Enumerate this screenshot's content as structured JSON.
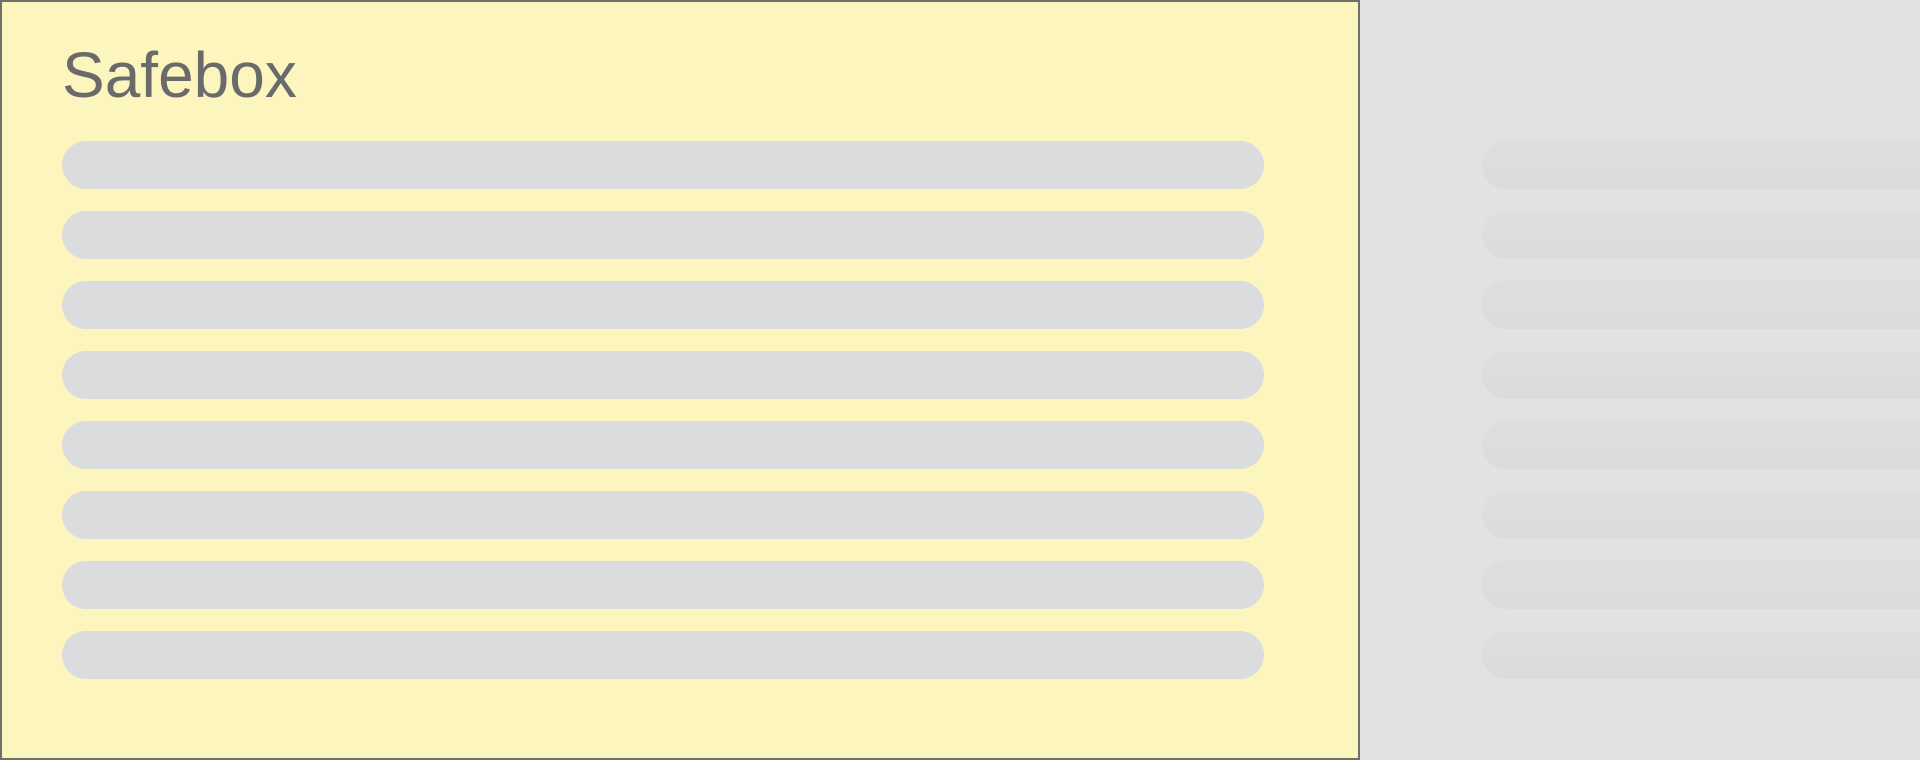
{
  "window": {
    "title": "Safebox"
  },
  "colors": {
    "panel_bg": "#fdf5be",
    "panel_border": "#70706b",
    "title_text": "#6a6a6a",
    "skeleton_bar": "#dbdcde",
    "backdrop_bg": "#e2e2e3",
    "backdrop_bar": "#dededf"
  },
  "safebox_panel": {
    "title": "Safebox",
    "skeleton_row_count": 8
  },
  "backdrop_panel": {
    "skeleton_row_count": 8
  }
}
